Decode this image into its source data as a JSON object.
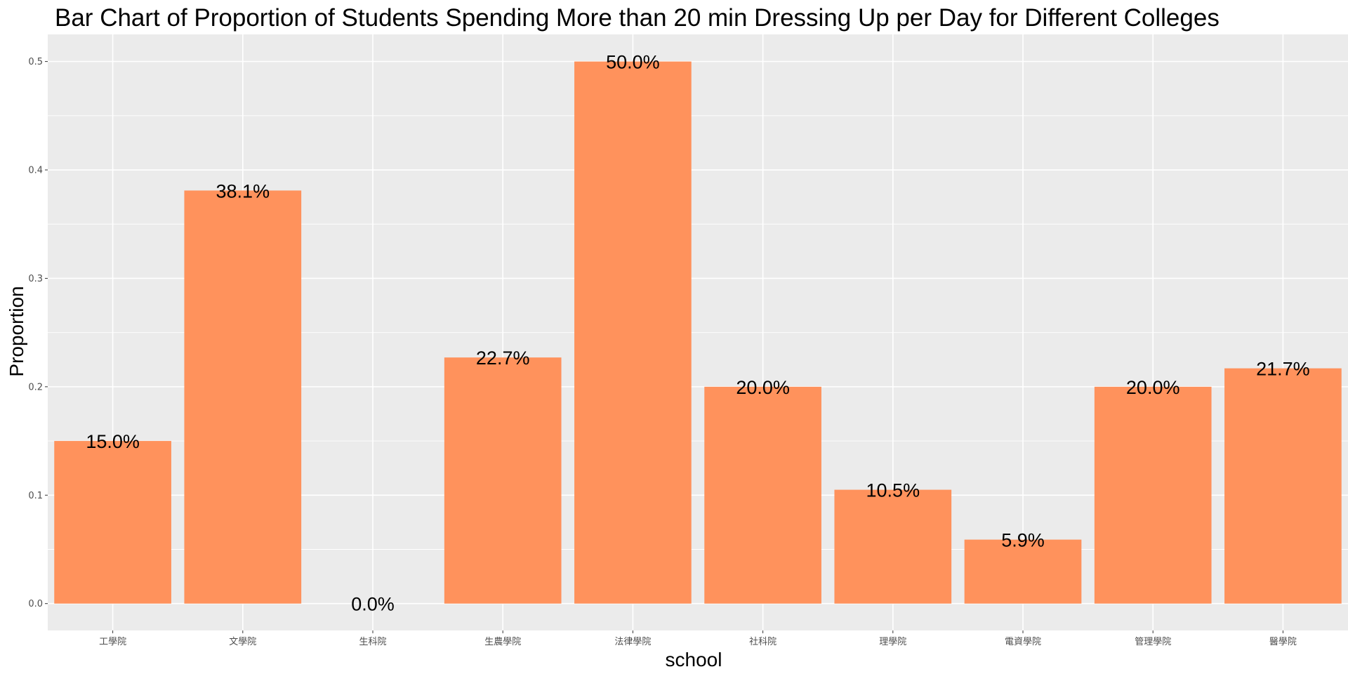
{
  "chart_data": {
    "type": "bar",
    "title": "Bar Chart of Proportion of Students Spending More than 20 min Dressing Up per Day for Different Colleges",
    "xlabel": "school",
    "ylabel": "Proportion",
    "categories": [
      "工學院",
      "文學院",
      "生科院",
      "生農學院",
      "法律學院",
      "社科院",
      "理學院",
      "電資學院",
      "管理學院",
      "醫學院"
    ],
    "values": [
      0.15,
      0.381,
      0.0,
      0.227,
      0.5,
      0.2,
      0.105,
      0.059,
      0.2,
      0.217
    ],
    "data_labels": [
      "15.0%",
      "38.1%",
      "0.0%",
      "22.7%",
      "50.0%",
      "20.0%",
      "10.5%",
      "5.9%",
      "20.0%",
      "21.7%"
    ],
    "yticks": [
      0.0,
      0.1,
      0.2,
      0.3,
      0.4,
      0.5
    ],
    "ytick_labels": [
      "0.0",
      "0.1",
      "0.2",
      "0.3",
      "0.4",
      "0.5"
    ],
    "ylim": [
      -0.0248,
      0.525
    ],
    "grid": true,
    "colors": {
      "bar": "#FF925C",
      "panel": "#EBEBEB",
      "gridline": "#FFFFFF"
    }
  }
}
